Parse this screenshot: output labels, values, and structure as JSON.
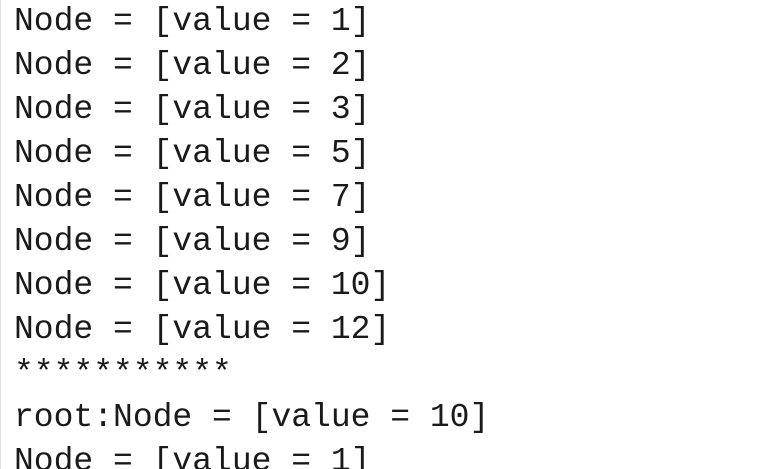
{
  "console": {
    "lines": [
      "Node = [value = 1]",
      "Node = [value = 2]",
      "Node = [value = 3]",
      "Node = [value = 5]",
      "Node = [value = 7]",
      "Node = [value = 9]",
      "Node = [value = 10]",
      "Node = [value = 12]",
      "***********",
      "root:Node = [value = 10]",
      "Node = [value = 1]"
    ]
  }
}
